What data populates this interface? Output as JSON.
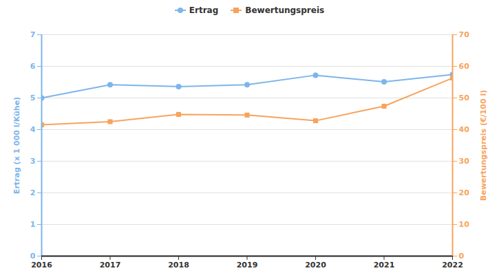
{
  "chart_data": {
    "type": "line",
    "x": [
      2016,
      2017,
      2018,
      2019,
      2020,
      2021,
      2022
    ],
    "xlim": [
      2016,
      2022
    ],
    "xticks": [
      2016,
      2017,
      2018,
      2019,
      2020,
      2021,
      2022
    ],
    "ylim": [
      0,
      7
    ],
    "yticks": [
      0,
      1,
      2,
      3,
      4,
      5,
      6,
      7
    ],
    "y2lim": [
      0,
      70
    ],
    "y2ticks": [
      0,
      10,
      20,
      30,
      40,
      50,
      60,
      70
    ],
    "y_label": "Ertrag (x 1 000 l/Kühe)",
    "y2_label": "Bewertungspreis (€/100 l)",
    "grid": true,
    "legend": "top",
    "series": [
      {
        "name": "Ertrag",
        "color": "#7cb5ec",
        "marker": "circle",
        "axis": "y",
        "values": [
          5.0,
          5.42,
          5.36,
          5.42,
          5.72,
          5.51,
          5.74
        ]
      },
      {
        "name": "Bewertungspreis",
        "color": "#f7a35c",
        "marker": "square",
        "axis": "y2",
        "values": [
          41.5,
          42.5,
          44.8,
          44.6,
          42.8,
          47.4,
          56.3
        ]
      }
    ]
  }
}
